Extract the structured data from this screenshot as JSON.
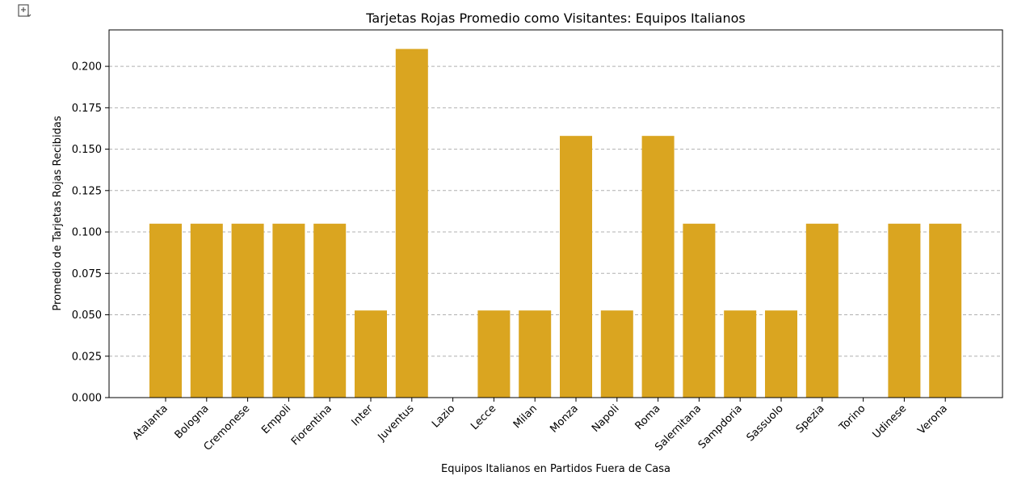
{
  "chart_data": {
    "type": "bar",
    "title": "Tarjetas Rojas Promedio como Visitantes: Equipos Italianos",
    "xlabel": "Equipos Italianos en Partidos Fuera de Casa",
    "ylabel": "Promedio de Tarjetas Rojas Recibidas",
    "categories": [
      "Atalanta",
      "Bologna",
      "Cremonese",
      "Empoli",
      "Fiorentina",
      "Inter",
      "Juventus",
      "Lazio",
      "Lecce",
      "Milan",
      "Monza",
      "Napoli",
      "Roma",
      "Salernitana",
      "Sampdoria",
      "Sassuolo",
      "Spezia",
      "Torino",
      "Udinese",
      "Verona"
    ],
    "values": [
      0.105,
      0.105,
      0.105,
      0.105,
      0.105,
      0.0526,
      0.2105,
      0.0,
      0.0526,
      0.0526,
      0.158,
      0.0526,
      0.158,
      0.105,
      0.0526,
      0.0526,
      0.105,
      0.0,
      0.105,
      0.105
    ],
    "ylim": [
      0,
      0.222
    ],
    "yticks": [
      "0.000",
      "0.025",
      "0.050",
      "0.075",
      "0.100",
      "0.125",
      "0.150",
      "0.175",
      "0.200"
    ],
    "grid": "y-dashed",
    "bar_color": "#DAA520"
  },
  "toolbar": {
    "icon": "expand-output-icon"
  }
}
